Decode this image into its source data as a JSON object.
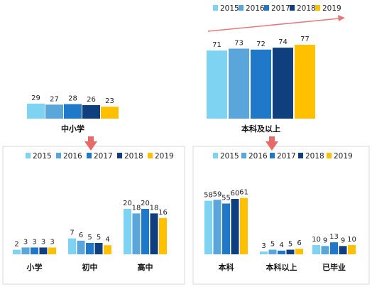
{
  "colors": {
    "2015": "#7fd3f2",
    "2016": "#5aa6da",
    "2017": "#1f78c8",
    "2018": "#0f3f7f",
    "2019": "#ffc000",
    "arrow_red": "#e66a6a"
  },
  "legend_years": [
    "2015",
    "2016",
    "2017",
    "2018",
    "2019"
  ],
  "chart_data": [
    {
      "type": "bar",
      "panel": "top-left",
      "categories": [
        "中小学"
      ],
      "series": [
        {
          "name": "2015",
          "values": [
            29
          ]
        },
        {
          "name": "2016",
          "values": [
            27
          ]
        },
        {
          "name": "2017",
          "values": [
            28
          ]
        },
        {
          "name": "2018",
          "values": [
            26
          ]
        },
        {
          "name": "2019",
          "values": [
            23
          ]
        }
      ],
      "legend": "none",
      "title": "",
      "ylim": [
        0,
        80
      ]
    },
    {
      "type": "bar",
      "panel": "top-right",
      "categories": [
        "本科及以上"
      ],
      "series": [
        {
          "name": "2015",
          "values": [
            71
          ]
        },
        {
          "name": "2016",
          "values": [
            73
          ]
        },
        {
          "name": "2017",
          "values": [
            72
          ]
        },
        {
          "name": "2018",
          "values": [
            74
          ]
        },
        {
          "name": "2019",
          "values": [
            77
          ]
        }
      ],
      "legend": "top",
      "trend_arrow": true,
      "ylim": [
        0,
        80
      ]
    },
    {
      "type": "bar",
      "panel": "bottom-left",
      "categories": [
        "小学",
        "初中",
        "高中"
      ],
      "series": [
        {
          "name": "2015",
          "values": [
            2,
            7,
            20
          ]
        },
        {
          "name": "2016",
          "values": [
            3,
            6,
            18
          ]
        },
        {
          "name": "2017",
          "values": [
            3,
            5,
            20
          ]
        },
        {
          "name": "2018",
          "values": [
            3,
            5,
            18
          ]
        },
        {
          "name": "2019",
          "values": [
            3,
            4,
            16
          ]
        }
      ],
      "legend": "top",
      "ylim": [
        0,
        25
      ]
    },
    {
      "type": "bar",
      "panel": "bottom-right",
      "categories": [
        "本科",
        "本科以上",
        "已毕业"
      ],
      "series": [
        {
          "name": "2015",
          "values": [
            58,
            3,
            10
          ]
        },
        {
          "name": "2016",
          "values": [
            59,
            5,
            9
          ]
        },
        {
          "name": "2017",
          "values": [
            55,
            4,
            13
          ]
        },
        {
          "name": "2018",
          "values": [
            60,
            5,
            9
          ]
        },
        {
          "name": "2019",
          "values": [
            61,
            6,
            10
          ]
        }
      ],
      "legend": "top",
      "ylim": [
        0,
        70
      ]
    }
  ]
}
